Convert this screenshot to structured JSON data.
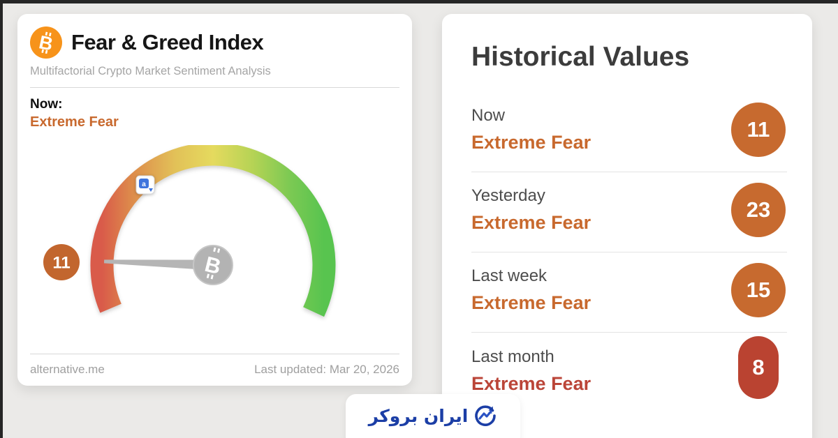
{
  "page": {
    "background_color": "#ebeae8",
    "frame_color": "#262626"
  },
  "fear_greed_card": {
    "title": "Fear & Greed Index",
    "subtitle": "Multifactorial Crypto Market Sentiment Analysis",
    "now_label": "Now:",
    "now_sentiment": "Extreme Fear",
    "sentiment_color": "#c8692e",
    "bitcoin_icon_color": "#f7931a",
    "source_link": "alternative.me",
    "last_updated": "Last updated: Mar 20, 2026"
  },
  "gauge": {
    "value": 11,
    "min": 0,
    "max": 100,
    "badge_label": "11",
    "badge_color": "#c2662e",
    "needle_angle_deg": 182,
    "arc_span_deg": 228,
    "needle_color": "#b5b5b5",
    "hub_color": "#b3b3b3",
    "gradient": [
      "#d95b4a",
      "#dd8a4b",
      "#e2c158",
      "#e5da5e",
      "#b5d355",
      "#7bc953",
      "#58c44f"
    ]
  },
  "historical_card": {
    "title": "Historical Values",
    "rows": [
      {
        "label": "Now",
        "sentiment": "Extreme Fear",
        "value": "11",
        "badge_color": "#c76a2f",
        "sentiment_color": "#c8692e"
      },
      {
        "label": "Yesterday",
        "sentiment": "Extreme Fear",
        "value": "23",
        "badge_color": "#c76a2f",
        "sentiment_color": "#c8692e"
      },
      {
        "label": "Last week",
        "sentiment": "Extreme Fear",
        "value": "15",
        "badge_color": "#c76a2f",
        "sentiment_color": "#c8692e"
      },
      {
        "label": "Last month",
        "sentiment": "Extreme Fear",
        "value": "8",
        "badge_color": "#ba4331",
        "sentiment_color": "#bb4538"
      }
    ]
  },
  "watermark": {
    "brand_text": "ایران بروکر",
    "brand_color": "#1b3ea6"
  },
  "chart_data": {
    "type": "gauge",
    "title": "Fear & Greed Index",
    "range": [
      0,
      100
    ],
    "current_value": 11,
    "current_sentiment": "Extreme Fear",
    "scale_colors": "red (extreme fear) to green (extreme greed)",
    "history": [
      {
        "period": "Now",
        "value": 11,
        "sentiment": "Extreme Fear"
      },
      {
        "period": "Yesterday",
        "value": 23,
        "sentiment": "Extreme Fear"
      },
      {
        "period": "Last week",
        "value": 15,
        "sentiment": "Extreme Fear"
      },
      {
        "period": "Last month",
        "value": 8,
        "sentiment": "Extreme Fear"
      }
    ]
  }
}
